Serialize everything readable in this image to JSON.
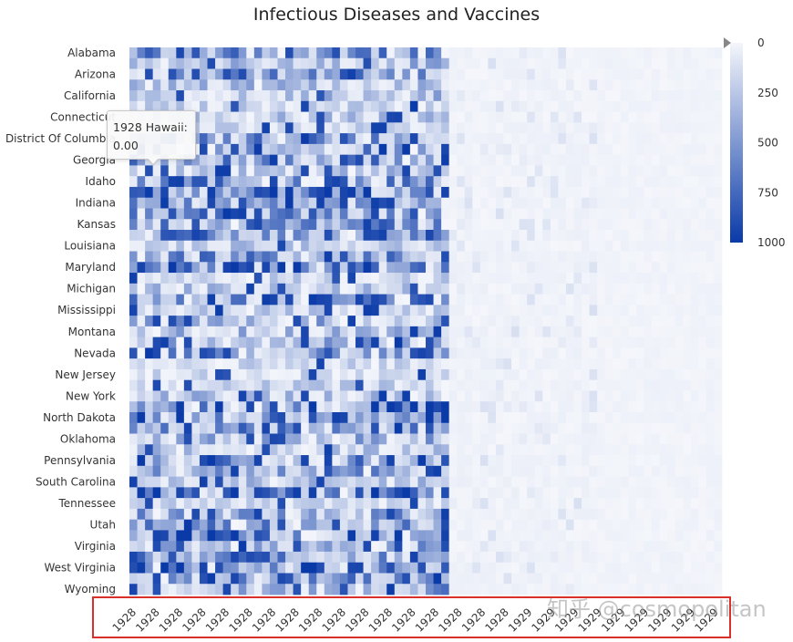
{
  "chart_data": {
    "type": "heatmap",
    "title": "Infectious Diseases and Vaccines",
    "y_labels_shown": [
      "Alabama",
      "Arizona",
      "California",
      "Connecticut",
      "District Of Columbia",
      "Georgia",
      "Idaho",
      "Indiana",
      "Kansas",
      "Louisiana",
      "Maryland",
      "Michigan",
      "Mississippi",
      "Montana",
      "Nevada",
      "New Jersey",
      "New York",
      "North Dakota",
      "Oklahoma",
      "Pennsylvania",
      "South Carolina",
      "Tennessee",
      "Utah",
      "Virginia",
      "West Virginia",
      "Wyoming"
    ],
    "x_tick_labels": [
      "1928",
      "1928",
      "1928",
      "1928",
      "1928",
      "1928",
      "1928",
      "1928",
      "1928",
      "1928",
      "1928",
      "1928",
      "1928",
      "1928",
      "1928",
      "1928",
      "1928",
      "1929",
      "1929",
      "1929",
      "1929",
      "1929",
      "1929",
      "1929",
      "1929",
      "1929"
    ],
    "colorbar": {
      "ticks": [
        "0",
        "250",
        "500",
        "750",
        "1000"
      ],
      "range": [
        0,
        1000
      ],
      "colors": [
        "#f4f6fb",
        "#0a3aa8"
      ]
    },
    "tooltip": {
      "line1": "1928 Hawaii:",
      "line2": "0.00"
    }
  },
  "watermark": "知乎 @cosmopolitan"
}
